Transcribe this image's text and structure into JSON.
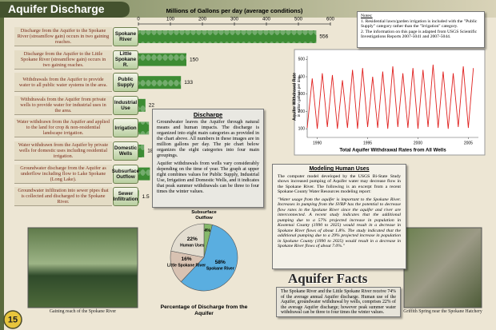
{
  "header": {
    "title": "Aquifer Discharge",
    "page_number": "15"
  },
  "notes": {
    "title": "Notes:",
    "items": [
      "1. Residential lawn/garden irrigation is included with the \"Public Supply\" category rather than the \"Irrigation\" category.",
      "2. The information on this page is adapted from USGS Scientific Investigations Reports 2007-5041 and 2007-5044."
    ]
  },
  "discharge_chart": {
    "type": "bar",
    "orientation": "horizontal",
    "axis_title": "Millions of Gallons per day (average conditions)",
    "xlim": [
      0,
      600
    ],
    "xticks": [
      0,
      100,
      200,
      300,
      400,
      500,
      600
    ],
    "color": "#3d8c34",
    "descriptions": [
      "Discharge from the Aquifer to the Spokane River (streamflow gain) occurs in two gaining reaches.",
      "Discharge from the Aquifer to the Little Spokane River (streamflow gain) occurs in two gaining reaches.",
      "Withdrawals from the Aquifer to provide water to all public water systems in the area.",
      "Withdrawals from the Aquifer from private wells to provide water for industrial uses in the area.",
      "Water withdrawn from the Aquifer and applied to the land for crop & non-residential landscape irrigation.",
      "Water withdrawn from the Aquifer by private wells for domestic uses including residential irrigation.",
      "Groundwater discharge from the Aquifer as underflow including flow to Lake Spokane (Long Lake).",
      "Groundwater infiltration into sewer pipes that is collected and discharged to the Spokane River."
    ],
    "categories": [
      "Spokane River",
      "Little Spokane R.",
      "Public Supply",
      "Industrial Use",
      "Irrigation",
      "Domestic Wells",
      "Subsurface Outflow",
      "Sewer Infiltration"
    ],
    "values": [
      556,
      150,
      133,
      22,
      33,
      18,
      36,
      1.5
    ]
  },
  "line_chart": {
    "type": "line",
    "title": "Total Aquifer Withdrawal Rates from All Wells",
    "y_label": "Aquifer Withdrawal Rate",
    "y_label_sub": "in million gallons per day",
    "color": "#e0201e",
    "xlim": [
      1989,
      2006
    ],
    "xticks": [
      1990,
      1995,
      2000,
      2005
    ],
    "ylim": [
      50,
      520
    ],
    "yticks": [
      100,
      200,
      300,
      400,
      500
    ],
    "x": [
      1989,
      1989.5,
      1990,
      1990.5,
      1991,
      1991.5,
      1992,
      1992.5,
      1993,
      1993.5,
      1994,
      1994.5,
      1995,
      1995.5,
      1996,
      1996.5,
      1997,
      1997.5,
      1998,
      1998.5,
      1999,
      1999.5,
      2000,
      2000.5,
      2001,
      2001.5,
      2002,
      2002.5,
      2003,
      2003.5,
      2004,
      2004.5,
      2005,
      2005.5
    ],
    "values": [
      105,
      390,
      100,
      420,
      110,
      410,
      100,
      380,
      105,
      440,
      100,
      450,
      110,
      400,
      105,
      430,
      100,
      460,
      110,
      420,
      105,
      450,
      100,
      440,
      110,
      470,
      105,
      430,
      100,
      420,
      110,
      460,
      105,
      450
    ]
  },
  "discharge_text": {
    "title": "Discharge",
    "paragraphs": [
      "Groundwater leaves the Aquifer through natural means and human impacts. The discharge is organized into eight main categories as provided in the chart above. All numbers in these images are in million gallons per day. The pie chart below organizes the eight categories into four main groupings.",
      "Aquifer withdrawals from wells vary considerably depending on the time of year. The graph at upper right combines values for Public Supply, Industrial Use, Irrigation and Domestic Wells, and it indicates that peak summer withdrawals can be three to four times the winter values."
    ]
  },
  "modeling": {
    "title": "Modeling Human Uses",
    "intro": "The computer model developed by the USGS Bi-State Study shows increased pumping of Aquifer water may decrease flow in the Spokane River. The following is an excerpt from a recent Spokane County Water Resources modeling report:",
    "quote": "\"Water usage from the aquifer is important to the Spokane River. Increases in pumping from the SVRP has the potential to decrease flow rates in the Spokane River since the aquifer and river are interconnected. A recent study indicates that the additional pumping due to a 57% projected increase in population in Kootenai County (1990 to 2025) would result in a decrease in Spokane River flows of about 1.8%. The study indicated that the additional pumping due to a 29% projected increase in population in Spokane County (1990 to 2025) would result in a decrease in Spokane River flows of about 7.0%.\""
  },
  "pie_chart": {
    "type": "pie",
    "title": "Percentage of Discharge from the Aquifer",
    "labels": [
      "Subsurface Outflow",
      "Spokane River",
      "Little Spokane River",
      "Human Uses"
    ],
    "values": [
      4,
      58,
      16,
      22
    ],
    "value_labels": [
      "4%",
      "58%",
      "16%",
      "22%"
    ],
    "colors": [
      "#86b96a",
      "#5aaee0",
      "#d8c2b2",
      "#e3ddd0"
    ]
  },
  "facts": {
    "title": "Aquifer Facts",
    "text": "The Spokane River and the Little Spokane River receive 74% of the average annual Aquifer discharge. Human use of the Aquifer, groundwater withdrawal by wells, comprises 22% of the average Aquifer discharge; however peak summer water withdrawal can be three to four times the winter values."
  },
  "photos": {
    "captions": [
      "Gaining reach of the Spokane River",
      "Griffith Spring near the Spokane Hatchery"
    ]
  }
}
